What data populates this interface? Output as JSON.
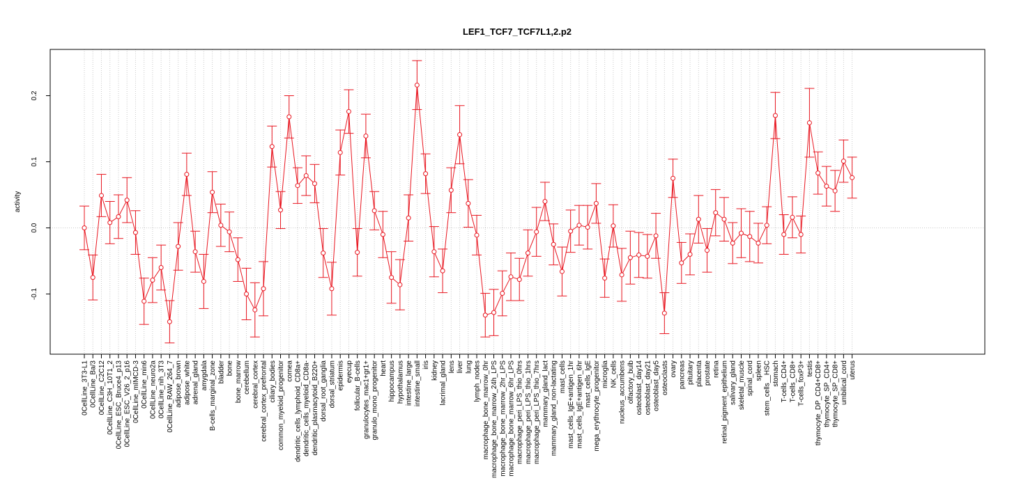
{
  "chart_data": {
    "type": "line",
    "title": "LEF1_TCF7_TCF7L1,2.p2",
    "xlabel": "",
    "ylabel": "activity",
    "ylim": [
      -0.19,
      0.27
    ],
    "yticks": [
      -0.1,
      0.0,
      0.1,
      0.2
    ],
    "ytick_labels": [
      "-0.1",
      "0.0",
      "0.1",
      "0.2"
    ],
    "grid": "vertical dotted at each category, horizontal dotted at 0",
    "colors": {
      "series": "#e8141e",
      "grid": "#c8c8c8",
      "frame": "#000000"
    },
    "categories": [
      "0CellLine_3T3-L1",
      "0CellLine_Ba/3",
      "0CellLine_C2C12",
      "0CellLine_C3H_10T1_2",
      "0CellLine_ESC_Bruce4_p13",
      "0CellLine_ESC_V26_2_p16",
      "0CellLine_mIMCD-3",
      "0CellLine_min6",
      "0CellLine_neuro2a",
      "0CellLine_nih_3T3",
      "0CellLine_RAW_264_7",
      "adipose_brown",
      "adipose_white",
      "adrenal_gland",
      "amygdala",
      "B-cells_marginal_zone",
      "bladder",
      "bone",
      "bone_marrow",
      "cerebellum",
      "cerebral_cortex",
      "cerebral_cortex_prefrontal",
      "ciliary_bodies",
      "common_myeloid_progenitor",
      "cornea",
      "dendritic_cells_lymphoid_CD8a+",
      "dendritic_cells_myeloid_CD8a-",
      "dendritic_plasmacytoid_B220+",
      "dorsal_root_ganglia",
      "dorsal_striatum",
      "epidermis",
      "eyecup",
      "follicular_B-cells",
      "granulocytes_mac1+gr1+",
      "granulo_mono_progenitor",
      "heart",
      "hippocampus",
      "hypothalamus",
      "intestine_large",
      "intestine_small",
      "iris",
      "kidney",
      "lacrimal_gland",
      "lens",
      "liver",
      "lung",
      "lymph_nodes",
      "macrophage_bone_marrow_0hr",
      "macrophage_bone_marrow_24h_LPS",
      "macrophage_bone_marrow_2hr_LPS",
      "macrophage_bone_marrow_6hr_LPS",
      "macrophage_peri_LPS_thio_0hrs",
      "macrophage_peri_LPS_thio_1hrs",
      "macrophage_peri_LPS_thio_7hrs",
      "mammary_gland_lact",
      "mammary_gland_non-lactating",
      "mast_cells",
      "mast_cells_IgE+antigen_1hr",
      "mast_cells_IgE+antigen_6hr",
      "mast_cells_IgE",
      "mega_erythrocyte_progenitor",
      "microglia",
      "NK_cells",
      "nucleus_accumbens",
      "olfactory_bulb",
      "osteoblast_day14",
      "osteoblast_day21",
      "osteoblast_day5",
      "osteoclasts",
      "ovary",
      "pancreas",
      "pituitary",
      "placenta",
      "prostate",
      "retina",
      "retinal_pigment_epithelium",
      "salivary_gland",
      "skeletal_muscle",
      "spinal_cord",
      "spleen",
      "stem_cells__HSC",
      "stomach",
      "T-cells_CD4+",
      "T-cells_CD8+",
      "T-cells_foxP3+",
      "testis",
      "thymocyte_DP_CD4+CD8+",
      "thymocyte_SP_CD4+",
      "thymocyte_SP_CD8+",
      "umbilical_cord",
      "uterus"
    ],
    "values": [
      0.0,
      -0.075,
      0.049,
      0.008,
      0.017,
      0.042,
      -0.007,
      -0.111,
      -0.079,
      -0.06,
      -0.142,
      -0.028,
      0.081,
      -0.036,
      -0.081,
      0.054,
      0.004,
      -0.006,
      -0.048,
      -0.1,
      -0.124,
      -0.092,
      0.123,
      0.027,
      0.168,
      0.064,
      0.079,
      0.067,
      -0.038,
      -0.092,
      0.114,
      0.176,
      -0.037,
      0.139,
      0.026,
      -0.01,
      -0.075,
      -0.086,
      0.015,
      0.216,
      0.082,
      -0.036,
      -0.065,
      0.057,
      0.141,
      0.037,
      -0.011,
      -0.132,
      -0.128,
      -0.099,
      -0.074,
      -0.078,
      -0.038,
      -0.006,
      0.04,
      -0.025,
      -0.066,
      -0.005,
      0.004,
      0.001,
      0.037,
      -0.076,
      0.003,
      -0.071,
      -0.045,
      -0.041,
      -0.043,
      -0.012,
      -0.129,
      0.075,
      -0.053,
      -0.04,
      0.013,
      -0.034,
      0.023,
      0.013,
      -0.023,
      -0.008,
      -0.013,
      -0.023,
      0.004,
      0.17,
      -0.01,
      0.016,
      -0.01,
      0.159,
      0.083,
      0.063,
      0.056,
      0.101,
      0.076
    ],
    "errors": [
      0.033,
      0.034,
      0.032,
      0.032,
      0.033,
      0.034,
      0.033,
      0.035,
      0.034,
      0.034,
      0.032,
      0.036,
      0.032,
      0.031,
      0.041,
      0.031,
      0.032,
      0.03,
      0.033,
      0.039,
      0.041,
      0.041,
      0.031,
      0.028,
      0.032,
      0.027,
      0.03,
      0.029,
      0.037,
      0.04,
      0.034,
      0.033,
      0.036,
      0.033,
      0.029,
      0.035,
      0.039,
      0.038,
      0.035,
      0.037,
      0.03,
      0.038,
      0.033,
      0.034,
      0.044,
      0.036,
      0.03,
      0.033,
      0.035,
      0.034,
      0.036,
      0.032,
      0.035,
      0.037,
      0.029,
      0.031,
      0.037,
      0.032,
      0.03,
      0.033,
      0.03,
      0.029,
      0.032,
      0.04,
      0.04,
      0.034,
      0.033,
      0.034,
      0.031,
      0.029,
      0.031,
      0.031,
      0.036,
      0.033,
      0.035,
      0.033,
      0.031,
      0.037,
      0.038,
      0.03,
      0.028,
      0.035,
      0.03,
      0.031,
      0.028,
      0.052,
      0.032,
      0.03,
      0.031,
      0.032,
      0.031
    ]
  }
}
